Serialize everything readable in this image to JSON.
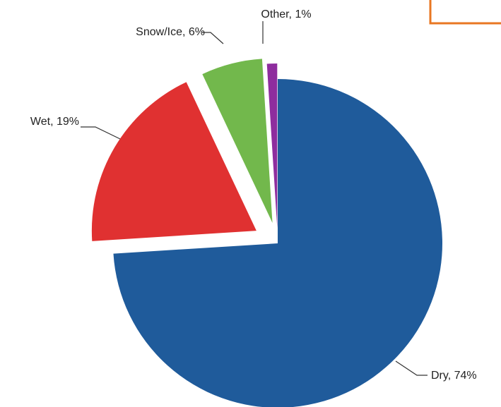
{
  "chart_data": {
    "type": "pie",
    "slices": [
      {
        "label": "Dry",
        "value": 74,
        "display": "Dry, 74%",
        "color": "#1f5b9b"
      },
      {
        "label": "Wet",
        "value": 19,
        "display": "Wet, 19%",
        "color": "#e03131"
      },
      {
        "label": "Snow/Ice",
        "value": 6,
        "display": "Snow/Ice, 6%",
        "color": "#72b84c"
      },
      {
        "label": "Other",
        "value": 1,
        "display": "Other, 1%",
        "color": "#8e2d9e"
      }
    ],
    "start_angle": "12 o'clock",
    "direction": "clockwise",
    "exploded": [
      "Wet",
      "Snow/Ice",
      "Other"
    ],
    "legend": "none",
    "grid": false
  },
  "decoration": {
    "frame_color": "#e87722"
  }
}
